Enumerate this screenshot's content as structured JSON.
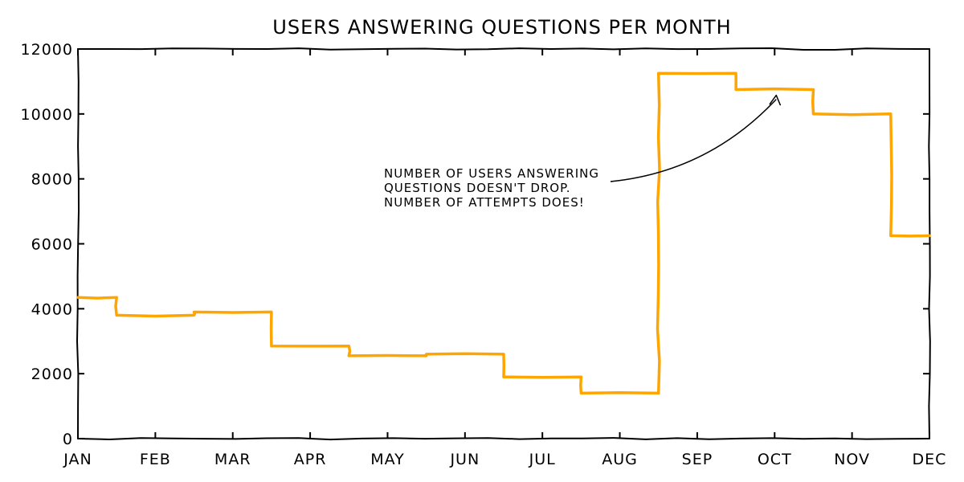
{
  "chart_data": {
    "type": "line",
    "drawstyle": "steps-post",
    "title": "USERS ANSWERING QUESTIONS PER MONTH",
    "xlabel": "",
    "ylabel": "",
    "grid": false,
    "legend": "none",
    "x_ticks": [
      "JAN",
      "FEB",
      "MAR",
      "APR",
      "MAY",
      "JUN",
      "JUL",
      "AUG",
      "SEP",
      "OCT",
      "NOV",
      "DEC"
    ],
    "y_ticks": [
      "0",
      "2000",
      "4000",
      "6000",
      "8000",
      "10000",
      "12000"
    ],
    "ylim": [
      0,
      12000
    ],
    "xlim": [
      0,
      11
    ],
    "series": [
      {
        "color": "#ffa500",
        "points": [
          {
            "x": 0.0,
            "y": 4350
          },
          {
            "x": 0.5,
            "y": 3800
          },
          {
            "x": 1.5,
            "y": 3900
          },
          {
            "x": 2.5,
            "y": 2850
          },
          {
            "x": 3.5,
            "y": 2550
          },
          {
            "x": 4.5,
            "y": 2600
          },
          {
            "x": 5.5,
            "y": 1900
          },
          {
            "x": 6.5,
            "y": 1400
          },
          {
            "x": 7.5,
            "y": 11250
          },
          {
            "x": 8.5,
            "y": 10750
          },
          {
            "x": 9.5,
            "y": 10000
          },
          {
            "x": 10.5,
            "y": 6250
          },
          {
            "x": 11.0,
            "y": 6250
          }
        ]
      }
    ],
    "annotation": {
      "text_lines": [
        "NUMBER OF USERS ANSWERING",
        "QUESTIONS DOESN'T DROP.",
        "NUMBER OF ATTEMPTS DOES!"
      ],
      "arrow_target": {
        "x": 9.0,
        "y": 10600
      }
    }
  }
}
